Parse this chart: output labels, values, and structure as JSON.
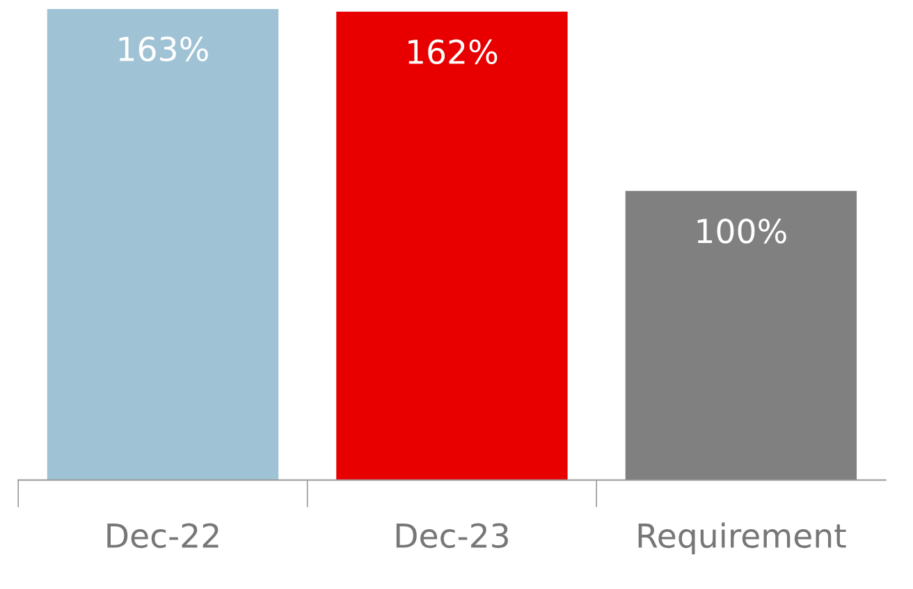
{
  "chart_data": {
    "type": "bar",
    "categories": [
      "Dec-22",
      "Dec-23",
      "Requirement"
    ],
    "values": [
      163,
      162,
      100
    ],
    "colors": [
      "#9fc3d5",
      "#e80000",
      "#808080"
    ],
    "value_labels": [
      "163%",
      "162%",
      "100%"
    ],
    "grid": false,
    "legend": false
  }
}
